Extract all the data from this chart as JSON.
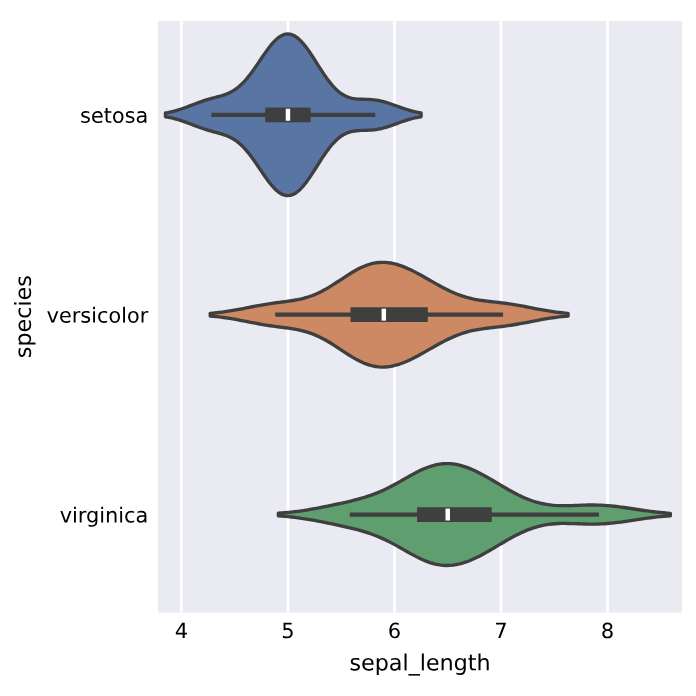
{
  "chart_data": {
    "type": "box",
    "orientation": "horizontal",
    "xlabel": "sepal_length",
    "ylabel": "species",
    "categories": [
      "setosa",
      "versicolor",
      "virginica"
    ],
    "xlim": [
      3.78,
      8.7
    ],
    "xticks": [
      4,
      5,
      6,
      7,
      8
    ],
    "grid": "x",
    "boxes": [
      {
        "low": 4.3,
        "q1": 4.8,
        "median": 5.0,
        "q3": 5.2,
        "high": 5.8
      },
      {
        "low": 4.9,
        "q1": 5.6,
        "median": 5.9,
        "q3": 6.3,
        "high": 7.0
      },
      {
        "low": 5.6,
        "q1": 6.225,
        "median": 6.5,
        "q3": 6.9,
        "high": 7.9
      }
    ]
  }
}
